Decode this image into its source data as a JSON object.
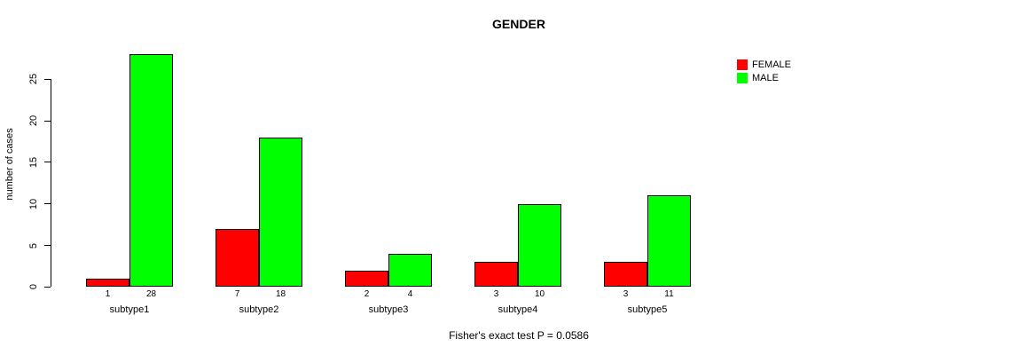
{
  "chart_data": {
    "type": "bar",
    "title": "GENDER",
    "xlabel": "",
    "ylabel": "number of cases",
    "categories": [
      "subtype1",
      "subtype2",
      "subtype3",
      "subtype4",
      "subtype5"
    ],
    "series": [
      {
        "name": "FEMALE",
        "color": "#ff0000",
        "values": [
          1,
          7,
          2,
          3,
          3
        ]
      },
      {
        "name": "MALE",
        "color": "#00ff00",
        "values": [
          28,
          18,
          4,
          10,
          11
        ]
      }
    ],
    "yticks": [
      0,
      5,
      10,
      15,
      20,
      25
    ],
    "ylim": [
      0,
      28
    ],
    "bar_value_labels_shown": true,
    "legend_position": "top-right",
    "grid": false,
    "bar_border_color": "#000000",
    "background_color": "#ffffff"
  },
  "footer": {
    "caption": "Fisher's exact test P = 0.0586"
  }
}
